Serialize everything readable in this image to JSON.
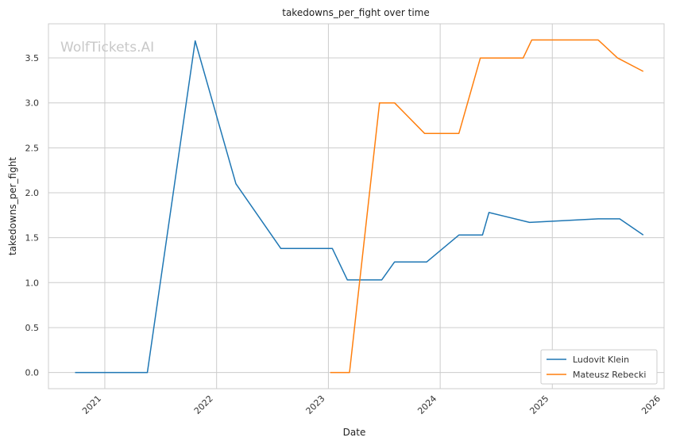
{
  "chart_data": {
    "type": "line",
    "title": "takedowns_per_fight over time",
    "xlabel": "Date",
    "ylabel": "takedowns_per_fight",
    "watermark": "WolfTickets.AI",
    "xlim": [
      "2020-07-01",
      "2026-01-01"
    ],
    "ylim": [
      -0.18,
      3.88
    ],
    "x_ticks": [
      "2021",
      "2022",
      "2023",
      "2024",
      "2025",
      "2026"
    ],
    "y_ticks": [
      0.0,
      0.5,
      1.0,
      1.5,
      2.0,
      2.5,
      3.0,
      3.5
    ],
    "y_tick_labels": [
      "0.0",
      "0.5",
      "1.0",
      "1.5",
      "2.0",
      "2.5",
      "3.0",
      "3.5"
    ],
    "grid": true,
    "legend_position": "bottom-right",
    "series": [
      {
        "name": "Ludovit Klein",
        "color": "#1f77b4",
        "points": [
          [
            "2020-09-26",
            0.0
          ],
          [
            "2021-05-20",
            0.0
          ],
          [
            "2021-10-23",
            3.69
          ],
          [
            "2022-03-05",
            2.1
          ],
          [
            "2022-07-30",
            1.38
          ],
          [
            "2023-01-14",
            1.38
          ],
          [
            "2023-03-04",
            1.03
          ],
          [
            "2023-06-24",
            1.03
          ],
          [
            "2023-08-05",
            1.23
          ],
          [
            "2023-11-18",
            1.23
          ],
          [
            "2024-03-02",
            1.53
          ],
          [
            "2024-05-18",
            1.53
          ],
          [
            "2024-06-08",
            1.78
          ],
          [
            "2024-10-19",
            1.67
          ],
          [
            "2025-05-31",
            1.71
          ],
          [
            "2025-08-09",
            1.71
          ],
          [
            "2025-10-25",
            1.53
          ]
        ]
      },
      {
        "name": "Mateusz Rebecki",
        "color": "#ff7f0e",
        "points": [
          [
            "2023-01-07",
            0.0
          ],
          [
            "2023-03-11",
            0.0
          ],
          [
            "2023-06-17",
            3.0
          ],
          [
            "2023-08-05",
            3.0
          ],
          [
            "2023-11-11",
            2.66
          ],
          [
            "2024-03-02",
            2.66
          ],
          [
            "2024-05-11",
            3.5
          ],
          [
            "2024-09-28",
            3.5
          ],
          [
            "2024-10-26",
            3.7
          ],
          [
            "2025-05-31",
            3.7
          ],
          [
            "2025-08-02",
            3.5
          ],
          [
            "2025-10-25",
            3.35
          ]
        ]
      }
    ]
  }
}
